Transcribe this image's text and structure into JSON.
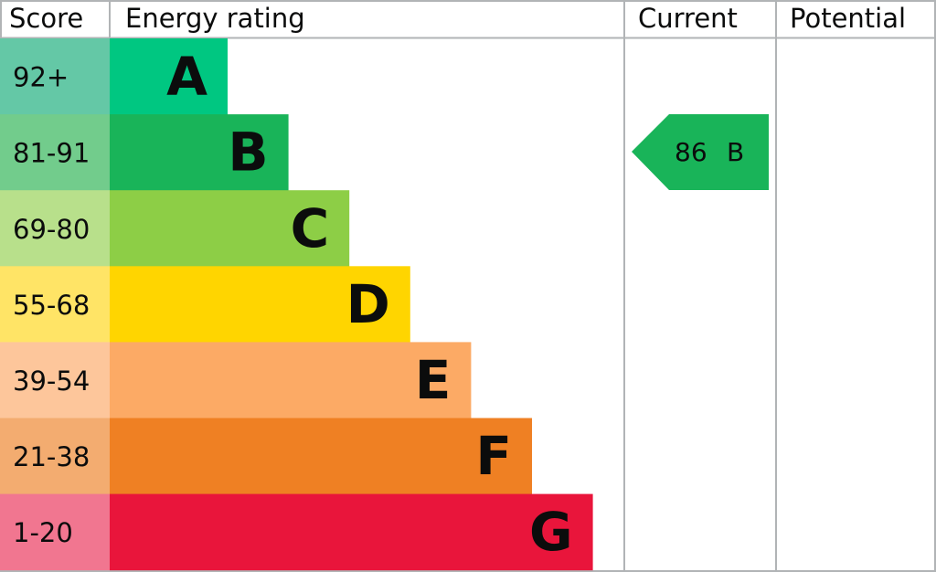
{
  "chart_data": {
    "type": "bar",
    "headers": {
      "score": "Score",
      "rating": "Energy rating",
      "current": "Current",
      "potential": "Potential"
    },
    "bands": [
      {
        "letter": "A",
        "range": "92+",
        "color": "#00c781",
        "score_color": "#64c8a6"
      },
      {
        "letter": "B",
        "range": "81-91",
        "color": "#19b459",
        "score_color": "#72cc8c"
      },
      {
        "letter": "C",
        "range": "69-80",
        "color": "#8dce46",
        "score_color": "#b8e08b"
      },
      {
        "letter": "D",
        "range": "55-68",
        "color": "#ffd500",
        "score_color": "#ffe466"
      },
      {
        "letter": "E",
        "range": "39-54",
        "color": "#fcaa65",
        "score_color": "#fdc69b"
      },
      {
        "letter": "F",
        "range": "21-38",
        "color": "#ef8023",
        "score_color": "#f3ac70"
      },
      {
        "letter": "G",
        "range": "1-20",
        "color": "#e9153b",
        "score_color": "#f17690"
      }
    ],
    "current": {
      "score": "86",
      "letter": "B",
      "color": "#19b459"
    },
    "potential": null
  }
}
